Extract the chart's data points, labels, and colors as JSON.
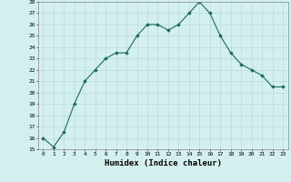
{
  "x": [
    0,
    1,
    2,
    3,
    4,
    5,
    6,
    7,
    8,
    9,
    10,
    11,
    12,
    13,
    14,
    15,
    16,
    17,
    18,
    19,
    20,
    21,
    22,
    23
  ],
  "y": [
    16.0,
    15.2,
    16.5,
    19.0,
    21.0,
    22.0,
    23.0,
    23.5,
    23.5,
    25.0,
    26.0,
    26.0,
    25.5,
    26.0,
    27.0,
    28.0,
    27.0,
    25.0,
    23.5,
    22.5,
    22.0,
    21.5,
    20.5,
    20.5
  ],
  "ylim": [
    15,
    28
  ],
  "yticks": [
    15,
    16,
    17,
    18,
    19,
    20,
    21,
    22,
    23,
    24,
    25,
    26,
    27,
    28
  ],
  "xlabel": "Humidex (Indice chaleur)",
  "line_color": "#1a6b5a",
  "marker": "D",
  "marker_size": 1.8,
  "bg_color": "#d4f0ee",
  "grid_color": "#b0d8d4"
}
